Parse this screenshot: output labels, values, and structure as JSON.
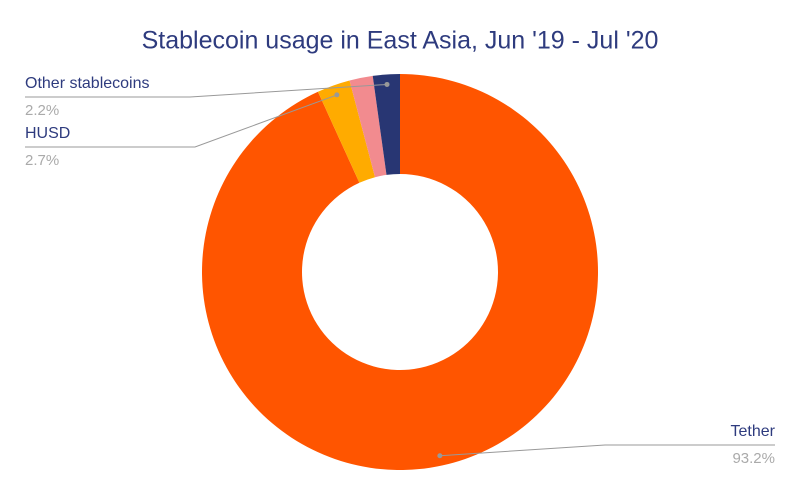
{
  "chart_data": {
    "type": "pie",
    "title": "Stablecoin usage in East Asia, Jun '19 - Jul '20",
    "categories": [
      "Tether",
      "HUSD",
      null,
      "Other stablecoins"
    ],
    "values": [
      93.2,
      2.7,
      1.9,
      2.2
    ],
    "value_labels": [
      "93.2%",
      "2.7%",
      null,
      "2.2%"
    ],
    "colors": [
      "#ff5500",
      "#ffab00",
      "#f28b8f",
      "#283673"
    ],
    "donut": true
  }
}
